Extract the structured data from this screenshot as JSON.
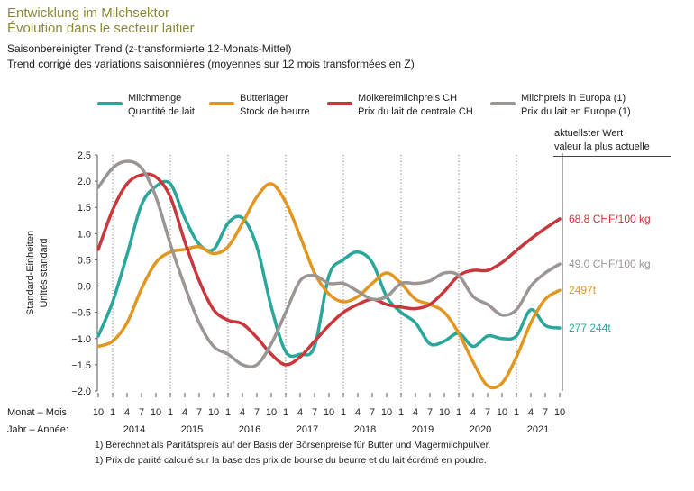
{
  "header": {
    "title_de": "Entwicklung im Milchsektor",
    "title_fr": "Évolution dans le secteur laitier",
    "subtitle_de": "Saisonbereinigter Trend (z-transformierte 12-Monats-Mittel)",
    "subtitle_fr": "Trend corrigé des variations saisonnières (moyennes sur 12 mois transformées en Z)"
  },
  "legend": [
    {
      "de": "Milchmenge",
      "fr": "Quantité de lait",
      "color": "#2aa79b"
    },
    {
      "de": "Butterlager",
      "fr": "Stock de beurre",
      "color": "#e3961f"
    },
    {
      "de": "Molkereimilchpreis CH",
      "fr": "Prix du lait de centrale CH",
      "color": "#c8373b"
    },
    {
      "de": "Milchpreis in Europa (1)",
      "fr": "Prix du lait en Europe (1)",
      "color": "#9b9694"
    }
  ],
  "right_header": {
    "de": "aktuellster Wert",
    "fr": "valeur la plus actuelle"
  },
  "footnotes": [
    "1)  Berechnet als Paritätspreis auf der Basis der Börsenpreise für Butter und Magermilchpulver.",
    "1)  Prix de parité calculé sur la base des prix de bourse du beurre et du lait écrémé en poudre."
  ],
  "chart_data": {
    "type": "line",
    "ylabel_de": "Standard-Einheiten",
    "ylabel_fr": "Unités standard",
    "xlabel_month": "Monat – Mois:",
    "xlabel_year": "Jahr – Année:",
    "ylim": [
      -2.0,
      2.5
    ],
    "yticks": [
      "2.5",
      "2.0",
      "1.5",
      "1.0",
      "0.5",
      "0.0",
      "−0.5",
      "−1.0",
      "−1.5",
      "−2.0"
    ],
    "month_ticks": [
      "10",
      "1",
      "4",
      "7",
      "10",
      "1",
      "4",
      "7",
      "10",
      "1",
      "4",
      "7",
      "10",
      "1",
      "4",
      "7",
      "10",
      "1",
      "4",
      "7",
      "10",
      "1",
      "4",
      "7",
      "10",
      "1",
      "4",
      "7",
      "10",
      "1",
      "4",
      "7",
      "10"
    ],
    "years": [
      "2014",
      "2015",
      "2016",
      "2017",
      "2018",
      "2019",
      "2020",
      "2021"
    ],
    "grid": "vertical dotted lines at January",
    "x_start": "2013-10",
    "x_end": "2021-10",
    "series": [
      {
        "name": "Milchmenge",
        "color": "#2aa79b",
        "points": [
          [
            "2013-10",
            -0.95
          ],
          [
            "2014-01",
            -0.3
          ],
          [
            "2014-04",
            0.6
          ],
          [
            "2014-07",
            1.55
          ],
          [
            "2014-10",
            1.9
          ],
          [
            "2015-01",
            1.95
          ],
          [
            "2015-04",
            1.3
          ],
          [
            "2015-07",
            0.8
          ],
          [
            "2015-10",
            0.7
          ],
          [
            "2016-01",
            1.2
          ],
          [
            "2016-04",
            1.3
          ],
          [
            "2016-07",
            0.75
          ],
          [
            "2016-10",
            -0.4
          ],
          [
            "2017-01",
            -1.25
          ],
          [
            "2017-04",
            -1.3
          ],
          [
            "2017-07",
            -1.15
          ],
          [
            "2017-10",
            0.2
          ],
          [
            "2018-01",
            0.5
          ],
          [
            "2018-04",
            0.65
          ],
          [
            "2018-07",
            0.45
          ],
          [
            "2018-10",
            -0.2
          ],
          [
            "2019-01",
            -0.5
          ],
          [
            "2019-04",
            -0.7
          ],
          [
            "2019-07",
            -1.1
          ],
          [
            "2019-10",
            -1.05
          ],
          [
            "2020-01",
            -0.9
          ],
          [
            "2020-04",
            -1.15
          ],
          [
            "2020-07",
            -0.95
          ],
          [
            "2020-10",
            -1.0
          ],
          [
            "2021-01",
            -0.95
          ],
          [
            "2021-04",
            -0.45
          ],
          [
            "2021-07",
            -0.75
          ],
          [
            "2021-10",
            -0.8
          ]
        ],
        "latest": "277 244t"
      },
      {
        "name": "Butterlager",
        "color": "#e3961f",
        "points": [
          [
            "2013-10",
            -1.15
          ],
          [
            "2014-01",
            -1.05
          ],
          [
            "2014-04",
            -0.7
          ],
          [
            "2014-07",
            -0.05
          ],
          [
            "2014-10",
            0.45
          ],
          [
            "2015-01",
            0.65
          ],
          [
            "2015-04",
            0.7
          ],
          [
            "2015-07",
            0.75
          ],
          [
            "2015-10",
            0.62
          ],
          [
            "2016-01",
            0.75
          ],
          [
            "2016-04",
            1.2
          ],
          [
            "2016-07",
            1.7
          ],
          [
            "2016-10",
            1.95
          ],
          [
            "2017-01",
            1.6
          ],
          [
            "2017-04",
            0.95
          ],
          [
            "2017-07",
            0.25
          ],
          [
            "2017-10",
            -0.15
          ],
          [
            "2018-01",
            -0.3
          ],
          [
            "2018-04",
            -0.2
          ],
          [
            "2018-07",
            0.05
          ],
          [
            "2018-10",
            0.25
          ],
          [
            "2019-01",
            0.05
          ],
          [
            "2019-04",
            -0.25
          ],
          [
            "2019-07",
            -0.35
          ],
          [
            "2019-10",
            -0.5
          ],
          [
            "2020-01",
            -0.9
          ],
          [
            "2020-04",
            -1.45
          ],
          [
            "2020-07",
            -1.9
          ],
          [
            "2020-10",
            -1.85
          ],
          [
            "2021-01",
            -1.35
          ],
          [
            "2021-04",
            -0.7
          ],
          [
            "2021-07",
            -0.25
          ],
          [
            "2021-10",
            -0.08
          ]
        ],
        "latest": "2497t"
      },
      {
        "name": "Molkereimilchpreis CH",
        "color": "#c8373b",
        "points": [
          [
            "2013-10",
            0.7
          ],
          [
            "2014-01",
            1.45
          ],
          [
            "2014-04",
            1.95
          ],
          [
            "2014-07",
            2.12
          ],
          [
            "2014-10",
            2.08
          ],
          [
            "2015-01",
            1.7
          ],
          [
            "2015-04",
            0.85
          ],
          [
            "2015-07",
            0.1
          ],
          [
            "2015-10",
            -0.45
          ],
          [
            "2016-01",
            -0.65
          ],
          [
            "2016-04",
            -0.72
          ],
          [
            "2016-07",
            -0.98
          ],
          [
            "2016-10",
            -1.3
          ],
          [
            "2017-01",
            -1.5
          ],
          [
            "2017-04",
            -1.35
          ],
          [
            "2017-07",
            -1.05
          ],
          [
            "2017-10",
            -0.75
          ],
          [
            "2018-01",
            -0.5
          ],
          [
            "2018-04",
            -0.35
          ],
          [
            "2018-07",
            -0.25
          ],
          [
            "2018-10",
            -0.35
          ],
          [
            "2019-01",
            -0.4
          ],
          [
            "2019-04",
            -0.43
          ],
          [
            "2019-07",
            -0.35
          ],
          [
            "2019-10",
            -0.1
          ],
          [
            "2020-01",
            0.2
          ],
          [
            "2020-04",
            0.3
          ],
          [
            "2020-07",
            0.3
          ],
          [
            "2020-10",
            0.45
          ],
          [
            "2021-01",
            0.68
          ],
          [
            "2021-04",
            0.9
          ],
          [
            "2021-07",
            1.1
          ],
          [
            "2021-10",
            1.28
          ]
        ],
        "latest": "68.8 CHF/100 kg"
      },
      {
        "name": "Milchpreis in Europa",
        "color": "#9b9694",
        "points": [
          [
            "2013-10",
            1.88
          ],
          [
            "2014-01",
            2.25
          ],
          [
            "2014-04",
            2.38
          ],
          [
            "2014-07",
            2.25
          ],
          [
            "2014-10",
            1.7
          ],
          [
            "2015-01",
            0.8
          ],
          [
            "2015-04",
            0.0
          ],
          [
            "2015-07",
            -0.7
          ],
          [
            "2015-10",
            -1.15
          ],
          [
            "2016-01",
            -1.3
          ],
          [
            "2016-04",
            -1.5
          ],
          [
            "2016-07",
            -1.5
          ],
          [
            "2016-10",
            -1.1
          ],
          [
            "2017-01",
            -0.5
          ],
          [
            "2017-04",
            0.1
          ],
          [
            "2017-07",
            0.2
          ],
          [
            "2017-10",
            0.05
          ],
          [
            "2018-01",
            0.05
          ],
          [
            "2018-04",
            -0.1
          ],
          [
            "2018-07",
            -0.25
          ],
          [
            "2018-10",
            -0.2
          ],
          [
            "2019-01",
            0.05
          ],
          [
            "2019-04",
            0.05
          ],
          [
            "2019-07",
            0.1
          ],
          [
            "2019-10",
            0.25
          ],
          [
            "2020-01",
            0.2
          ],
          [
            "2020-04",
            -0.2
          ],
          [
            "2020-07",
            -0.35
          ],
          [
            "2020-10",
            -0.55
          ],
          [
            "2021-01",
            -0.45
          ],
          [
            "2021-04",
            0.0
          ],
          [
            "2021-07",
            0.25
          ],
          [
            "2021-10",
            0.42
          ]
        ],
        "latest": "49.0 CHF/100 kg"
      }
    ]
  }
}
